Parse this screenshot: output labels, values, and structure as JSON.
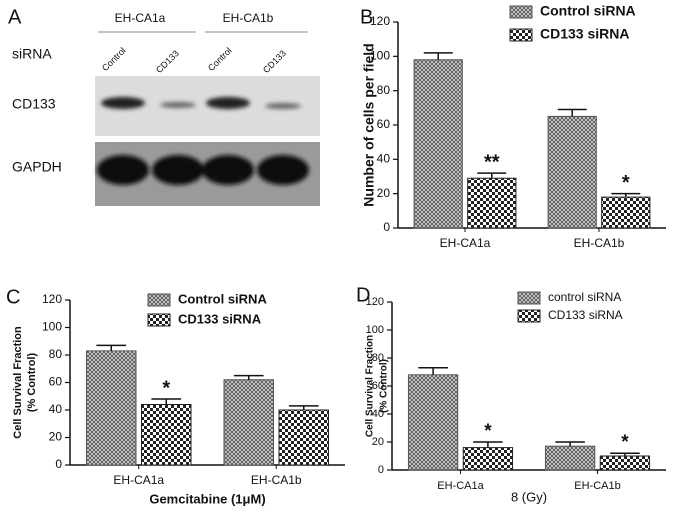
{
  "blot": {
    "label": "A",
    "cell_lines": [
      "EH-CA1a",
      "EH-CA1b"
    ],
    "row_header": "siRNA",
    "lanes": [
      "Control",
      "CD133",
      "Control",
      "CD133"
    ],
    "rows": [
      "CD133",
      "GAPDH"
    ]
  },
  "chart_data": [
    {
      "type": "bar",
      "label": "B",
      "ylabel": "Number of cells per field",
      "categories": [
        "EH-CA1a",
        "EH-CA1b"
      ],
      "ylim": [
        0,
        120
      ],
      "yticks": [
        0,
        20,
        40,
        60,
        80,
        100,
        120
      ],
      "legend": "upper right",
      "series": [
        {
          "name": "Control siRNA",
          "color": "#555555",
          "pattern": "crosshatch",
          "values": [
            98,
            65
          ],
          "errors": [
            4,
            4
          ]
        },
        {
          "name": "CD133 siRNA",
          "color": "#222222",
          "pattern": "checker",
          "values": [
            29,
            18
          ],
          "errors": [
            3,
            2
          ],
          "significance": [
            "**",
            "*"
          ]
        }
      ]
    },
    {
      "type": "bar",
      "label": "C",
      "ylabel": [
        "Cell Survival Fraction",
        "(% Control)"
      ],
      "xlabel": "Gemcitabine (1μM)",
      "categories": [
        "EH-CA1a",
        "EH-CA1b"
      ],
      "ylim": [
        0,
        120
      ],
      "yticks": [
        0,
        20,
        40,
        60,
        80,
        100,
        120
      ],
      "legend": "upper right",
      "series": [
        {
          "name": "Control siRNA",
          "color": "#555555",
          "pattern": "crosshatch",
          "values": [
            83,
            62
          ],
          "errors": [
            4,
            3
          ]
        },
        {
          "name": "CD133 siRNA",
          "color": "#222222",
          "pattern": "checker",
          "values": [
            44,
            40
          ],
          "errors": [
            4,
            3
          ],
          "significance": [
            "*",
            null
          ]
        }
      ]
    },
    {
      "type": "bar",
      "label": "D",
      "ylabel": [
        "Cell Survival Fraction",
        "(% Control)"
      ],
      "xlabel": "8 (Gy)",
      "categories": [
        "EH-CA1a",
        "EH-CA1b"
      ],
      "ylim": [
        0,
        120
      ],
      "yticks": [
        0,
        20,
        40,
        60,
        80,
        100,
        120
      ],
      "legend": "upper right",
      "series": [
        {
          "name": "control siRNA",
          "color": "#555555",
          "pattern": "crosshatch",
          "values": [
            68,
            17
          ],
          "errors": [
            5,
            3
          ]
        },
        {
          "name": "CD133 siRNA",
          "color": "#222222",
          "pattern": "checker",
          "values": [
            16,
            10
          ],
          "errors": [
            4,
            2
          ],
          "significance": [
            "*",
            "*"
          ]
        }
      ]
    }
  ]
}
